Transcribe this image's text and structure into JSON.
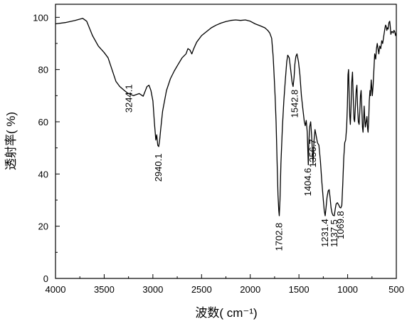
{
  "chart_data": {
    "type": "line",
    "xlabel": "波数(  cm⁻¹)",
    "ylabel": "透射率(  %)",
    "xlim": [
      4000,
      500
    ],
    "ylim": [
      0,
      105
    ],
    "x_reversed": true,
    "grid": false,
    "x_ticks": [
      4000,
      3500,
      3000,
      2500,
      2000,
      1500,
      1000,
      500
    ],
    "y_ticks": [
      0,
      20,
      40,
      60,
      80,
      100
    ],
    "x_tick_labels": [
      "4000",
      "3500",
      "3000",
      "2500",
      "2000",
      "1500",
      "1000",
      "500"
    ],
    "y_tick_labels": [
      "0",
      "20",
      "40",
      "60",
      "80",
      "100"
    ],
    "series": [
      {
        "color": "#000000",
        "points": [
          [
            4000,
            97.5
          ],
          [
            3900,
            98.0
          ],
          [
            3800,
            98.8
          ],
          [
            3720,
            99.6
          ],
          [
            3680,
            98.5
          ],
          [
            3620,
            93.0
          ],
          [
            3560,
            89.0
          ],
          [
            3500,
            86.5
          ],
          [
            3460,
            84.5
          ],
          [
            3420,
            80.0
          ],
          [
            3380,
            75.5
          ],
          [
            3340,
            73.5
          ],
          [
            3300,
            72.2
          ],
          [
            3260,
            71.0
          ],
          [
            3200,
            70.0
          ],
          [
            3140,
            70.8
          ],
          [
            3100,
            69.8
          ],
          [
            3060,
            73.5
          ],
          [
            3040,
            74.0
          ],
          [
            3020,
            72.0
          ],
          [
            3000,
            68.0
          ],
          [
            2985,
            60.0
          ],
          [
            2970,
            53.0
          ],
          [
            2960,
            55.0
          ],
          [
            2950,
            51.0
          ],
          [
            2940,
            50.5
          ],
          [
            2930,
            53.0
          ],
          [
            2920,
            57.0
          ],
          [
            2900,
            64.0
          ],
          [
            2860,
            72.0
          ],
          [
            2820,
            76.5
          ],
          [
            2780,
            79.5
          ],
          [
            2740,
            82.0
          ],
          [
            2700,
            84.5
          ],
          [
            2660,
            86.0
          ],
          [
            2640,
            88.0
          ],
          [
            2620,
            87.5
          ],
          [
            2600,
            86.0
          ],
          [
            2580,
            88.0
          ],
          [
            2550,
            90.5
          ],
          [
            2500,
            93.0
          ],
          [
            2450,
            94.5
          ],
          [
            2400,
            96.0
          ],
          [
            2350,
            97.0
          ],
          [
            2300,
            97.8
          ],
          [
            2250,
            98.4
          ],
          [
            2200,
            98.8
          ],
          [
            2150,
            99.0
          ],
          [
            2100,
            98.8
          ],
          [
            2050,
            99.0
          ],
          [
            2000,
            98.5
          ],
          [
            1950,
            97.5
          ],
          [
            1900,
            96.8
          ],
          [
            1850,
            96.0
          ],
          [
            1820,
            95.0
          ],
          [
            1800,
            94.0
          ],
          [
            1780,
            92.0
          ],
          [
            1765,
            85.0
          ],
          [
            1755,
            78.0
          ],
          [
            1745,
            70.0
          ],
          [
            1735,
            60.0
          ],
          [
            1725,
            45.0
          ],
          [
            1715,
            32.0
          ],
          [
            1707,
            26.0
          ],
          [
            1702,
            24.0
          ],
          [
            1695,
            30.0
          ],
          [
            1685,
            44.0
          ],
          [
            1670,
            58.0
          ],
          [
            1655,
            68.0
          ],
          [
            1640,
            76.0
          ],
          [
            1625,
            83.0
          ],
          [
            1615,
            85.5
          ],
          [
            1600,
            84.5
          ],
          [
            1585,
            80.0
          ],
          [
            1570,
            75.0
          ],
          [
            1560,
            73.5
          ],
          [
            1550,
            77.0
          ],
          [
            1542,
            82.0
          ],
          [
            1532,
            85.0
          ],
          [
            1520,
            86.0
          ],
          [
            1505,
            83.0
          ],
          [
            1490,
            78.0
          ],
          [
            1475,
            70.0
          ],
          [
            1460,
            65.0
          ],
          [
            1445,
            60.0
          ],
          [
            1435,
            58.5
          ],
          [
            1425,
            60.5
          ],
          [
            1415,
            56.0
          ],
          [
            1410,
            50.0
          ],
          [
            1404,
            43.5
          ],
          [
            1398,
            52.0
          ],
          [
            1390,
            58.0
          ],
          [
            1380,
            60.0
          ],
          [
            1370,
            55.0
          ],
          [
            1356,
            44.0
          ],
          [
            1345,
            53.0
          ],
          [
            1335,
            57.0
          ],
          [
            1325,
            55.0
          ],
          [
            1310,
            52.0
          ],
          [
            1295,
            51.0
          ],
          [
            1280,
            45.0
          ],
          [
            1265,
            37.0
          ],
          [
            1250,
            30.0
          ],
          [
            1240,
            26.0
          ],
          [
            1231,
            24.0
          ],
          [
            1222,
            27.0
          ],
          [
            1212,
            31.0
          ],
          [
            1200,
            33.5
          ],
          [
            1190,
            34.0
          ],
          [
            1180,
            31.0
          ],
          [
            1170,
            27.0
          ],
          [
            1160,
            25.0
          ],
          [
            1150,
            24.2
          ],
          [
            1137,
            24.0
          ],
          [
            1128,
            26.5
          ],
          [
            1118,
            28.5
          ],
          [
            1105,
            29.0
          ],
          [
            1090,
            28.0
          ],
          [
            1080,
            27.2
          ],
          [
            1070,
            27.0
          ],
          [
            1060,
            28.0
          ],
          [
            1050,
            36.0
          ],
          [
            1040,
            46.0
          ],
          [
            1030,
            52.0
          ],
          [
            1020,
            53.0
          ],
          [
            1010,
            58.0
          ],
          [
            1003,
            66.0
          ],
          [
            996,
            78.0
          ],
          [
            990,
            80.0
          ],
          [
            985,
            72.0
          ],
          [
            978,
            62.0
          ],
          [
            972,
            59.0
          ],
          [
            965,
            66.0
          ],
          [
            958,
            75.0
          ],
          [
            950,
            79.0
          ],
          [
            943,
            70.0
          ],
          [
            935,
            61.0
          ],
          [
            928,
            60.0
          ],
          [
            920,
            66.0
          ],
          [
            912,
            72.0
          ],
          [
            905,
            74.0
          ],
          [
            898,
            66.0
          ],
          [
            890,
            60.0
          ],
          [
            882,
            59.0
          ],
          [
            875,
            64.0
          ],
          [
            868,
            70.0
          ],
          [
            862,
            72.0
          ],
          [
            855,
            66.0
          ],
          [
            848,
            58.0
          ],
          [
            842,
            56.0
          ],
          [
            836,
            60.0
          ],
          [
            830,
            66.0
          ],
          [
            825,
            62.0
          ],
          [
            818,
            58.0
          ],
          [
            810,
            60.0
          ],
          [
            802,
            62.0
          ],
          [
            795,
            57.5
          ],
          [
            790,
            56.0
          ],
          [
            784,
            60.0
          ],
          [
            778,
            68.0
          ],
          [
            770,
            72.0
          ],
          [
            765,
            70.0
          ],
          [
            758,
            76.0
          ],
          [
            752,
            73.0
          ],
          [
            746,
            70.0
          ],
          [
            738,
            74.0
          ],
          [
            730,
            80.0
          ],
          [
            722,
            86.0
          ],
          [
            712,
            84.0
          ],
          [
            704,
            88.0
          ],
          [
            696,
            90.0
          ],
          [
            688,
            88.0
          ],
          [
            680,
            86.0
          ],
          [
            670,
            89.0
          ],
          [
            660,
            88.0
          ],
          [
            650,
            91.0
          ],
          [
            640,
            90.0
          ],
          [
            632,
            92.0
          ],
          [
            624,
            94.0
          ],
          [
            616,
            96.0
          ],
          [
            610,
            97.0
          ],
          [
            604,
            96.5
          ],
          [
            598,
            95.0
          ],
          [
            592,
            96.0
          ],
          [
            584,
            95.5
          ],
          [
            576,
            98.0
          ],
          [
            568,
            98.5
          ],
          [
            562,
            96.5
          ],
          [
            556,
            93.5
          ],
          [
            548,
            94.5
          ],
          [
            540,
            94.5
          ],
          [
            532,
            94.0
          ],
          [
            524,
            95.0
          ],
          [
            516,
            94.5
          ],
          [
            508,
            93.0
          ],
          [
            500,
            94.0
          ]
        ]
      }
    ],
    "annotations": [
      {
        "text": "3244.1",
        "x": 3244.1,
        "y": 63.5
      },
      {
        "text": "2940.1",
        "x": 2940.1,
        "y": 37.0
      },
      {
        "text": "1702.8",
        "x": 1702.8,
        "y": 10.5
      },
      {
        "text": "1542.8",
        "x": 1542.8,
        "y": 61.5
      },
      {
        "text": "1404.6",
        "x": 1404.6,
        "y": 31.5
      },
      {
        "text": "1356.7",
        "x": 1356.7,
        "y": 42.5
      },
      {
        "text": "1231.4",
        "x": 1231.4,
        "y": 12.0
      },
      {
        "text": "1137.5",
        "x": 1137.5,
        "y": 12.0
      },
      {
        "text": "1069.8",
        "x": 1069.8,
        "y": 15.0
      }
    ]
  }
}
